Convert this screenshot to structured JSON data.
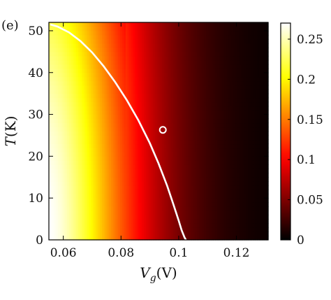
{
  "panel_label": "(e)",
  "chart_data": {
    "type": "heatmap",
    "title": "",
    "xlabel_main": "V",
    "xlabel_sub": "g",
    "xlabel_unit": "(V)",
    "ylabel_main": "T",
    "ylabel_unit": "(K)",
    "xlim": [
      0.055,
      0.131
    ],
    "ylim": [
      0,
      52
    ],
    "x_ticks": [
      0.06,
      0.08,
      0.1,
      0.12
    ],
    "x_tick_labels": [
      "0.06",
      "0.08",
      "0.1",
      "0.12"
    ],
    "y_ticks": [
      0,
      10,
      20,
      30,
      40,
      50
    ],
    "y_tick_labels": [
      "0",
      "10",
      "20",
      "30",
      "40",
      "50"
    ],
    "colorbar": {
      "range": [
        0,
        0.27
      ],
      "ticks": [
        0,
        0.05,
        0.1,
        0.15,
        0.2,
        0.25
      ],
      "tick_labels": [
        "0",
        "0.05",
        "0.1",
        "0.15",
        "0.2",
        "0.25"
      ],
      "colormap": "hot"
    },
    "boundary_curve": {
      "x": [
        0.0555,
        0.058,
        0.062,
        0.066,
        0.07,
        0.074,
        0.078,
        0.082,
        0.086,
        0.09,
        0.093,
        0.096,
        0.098,
        0.1,
        0.101,
        0.102,
        0.1025
      ],
      "y": [
        51.5,
        51.0,
        49.6,
        47.5,
        44.8,
        41.5,
        37.7,
        33.4,
        28.6,
        23.1,
        18.3,
        12.9,
        8.8,
        4.6,
        2.3,
        0.6,
        0
      ]
    },
    "marker": {
      "x": 0.0945,
      "y": 26.3
    },
    "colors": {
      "curve": "#ffffff",
      "frame": "#000000"
    }
  }
}
